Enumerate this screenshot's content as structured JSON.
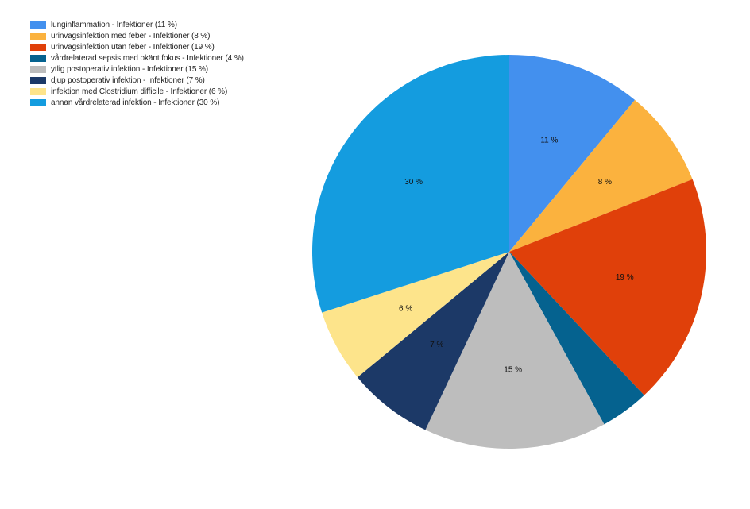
{
  "chart_data": {
    "type": "pie",
    "title": "",
    "legend_position": "top-left",
    "slices": [
      {
        "legend": "lunginflammation - Infektioner (11 %)",
        "value": 11,
        "label": "11 %",
        "color": "#4390ee"
      },
      {
        "legend": "urinvägsinfektion med feber - Infektioner (8 %)",
        "value": 8,
        "label": "8 %",
        "color": "#fbb23e"
      },
      {
        "legend": "urinvägsinfektion utan feber - Infektioner (19 %)",
        "value": 19,
        "label": "19 %",
        "color": "#e0400a"
      },
      {
        "legend": "vårdrelaterad sepsis med okänt fokus - Infektioner (4 %)",
        "value": 4,
        "label": "",
        "color": "#05628f"
      },
      {
        "legend": "ytlig postoperativ infektion - Infektioner (15 %)",
        "value": 15,
        "label": "15 %",
        "color": "#bdbdbd"
      },
      {
        "legend": "djup postoperativ infektion - Infektioner (7 %)",
        "value": 7,
        "label": "7 %",
        "color": "#1c3967"
      },
      {
        "legend": "infektion med Clostridium difficile - Infektioner (6 %)",
        "value": 6,
        "label": "6 %",
        "color": "#fde48b"
      },
      {
        "legend": "annan vårdrelaterad infektion - Infektioner (30 %)",
        "value": 30,
        "label": "30 %",
        "color": "#149cdf"
      }
    ]
  }
}
